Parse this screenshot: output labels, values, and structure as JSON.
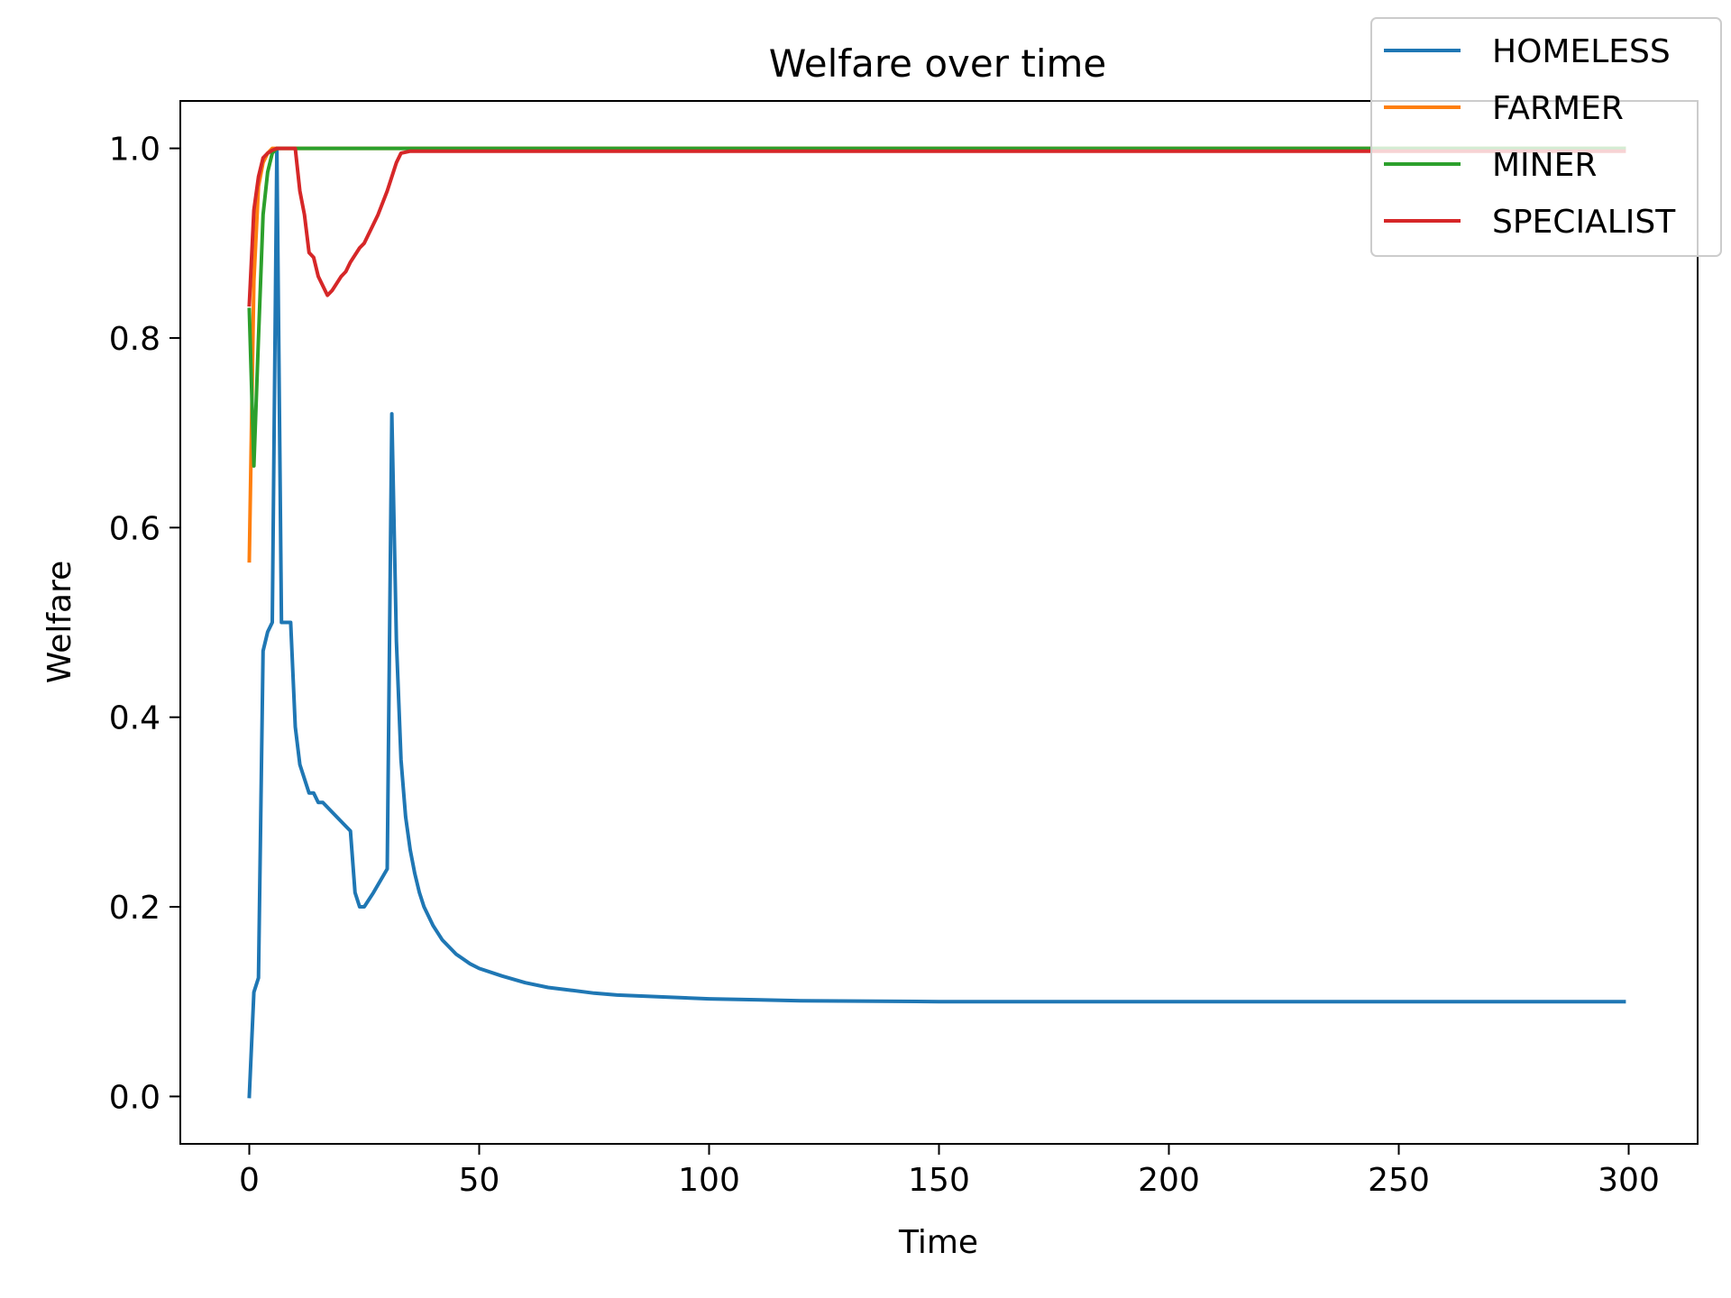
{
  "chart_data": {
    "type": "line",
    "title": "Welfare over time",
    "xlabel": "Time",
    "ylabel": "Welfare",
    "xlim": [
      -15,
      315
    ],
    "ylim": [
      -0.05,
      1.05
    ],
    "xticks": [
      0,
      50,
      100,
      150,
      200,
      250,
      300
    ],
    "yticks": [
      0.0,
      0.2,
      0.4,
      0.6,
      0.8,
      1.0
    ],
    "xtick_labels": [
      "0",
      "50",
      "100",
      "150",
      "200",
      "250",
      "300"
    ],
    "ytick_labels": [
      "0.0",
      "0.2",
      "0.4",
      "0.6",
      "0.8",
      "1.0"
    ],
    "grid": false,
    "legend_position": "top-right",
    "series": [
      {
        "name": "HOMELESS",
        "color": "#1f77b4",
        "points": [
          [
            0,
            0.0
          ],
          [
            1,
            0.11
          ],
          [
            2,
            0.125
          ],
          [
            3,
            0.47
          ],
          [
            4,
            0.49
          ],
          [
            5,
            0.5
          ],
          [
            6,
            1.0
          ],
          [
            7,
            0.5
          ],
          [
            9,
            0.5
          ],
          [
            10,
            0.39
          ],
          [
            11,
            0.35
          ],
          [
            13,
            0.32
          ],
          [
            14,
            0.32
          ],
          [
            15,
            0.31
          ],
          [
            16,
            0.31
          ],
          [
            18,
            0.3
          ],
          [
            20,
            0.29
          ],
          [
            22,
            0.28
          ],
          [
            23,
            0.215
          ],
          [
            24,
            0.2
          ],
          [
            25,
            0.2
          ],
          [
            27,
            0.215
          ],
          [
            30,
            0.24
          ],
          [
            31,
            0.72
          ],
          [
            32,
            0.48
          ],
          [
            33,
            0.355
          ],
          [
            34,
            0.295
          ],
          [
            35,
            0.26
          ],
          [
            36,
            0.235
          ],
          [
            37,
            0.215
          ],
          [
            38,
            0.2
          ],
          [
            40,
            0.18
          ],
          [
            42,
            0.165
          ],
          [
            45,
            0.15
          ],
          [
            48,
            0.14
          ],
          [
            50,
            0.135
          ],
          [
            55,
            0.127
          ],
          [
            60,
            0.12
          ],
          [
            65,
            0.115
          ],
          [
            70,
            0.112
          ],
          [
            75,
            0.109
          ],
          [
            80,
            0.107
          ],
          [
            90,
            0.105
          ],
          [
            100,
            0.103
          ],
          [
            110,
            0.102
          ],
          [
            120,
            0.101
          ],
          [
            150,
            0.1
          ],
          [
            200,
            0.1
          ],
          [
            250,
            0.1
          ],
          [
            299,
            0.1
          ]
        ]
      },
      {
        "name": "FARMER",
        "color": "#ff7f0e",
        "points": [
          [
            0,
            0.565
          ],
          [
            1,
            0.86
          ],
          [
            2,
            0.96
          ],
          [
            3,
            0.985
          ],
          [
            4,
            0.995
          ],
          [
            5,
            1.0
          ],
          [
            10,
            1.0
          ],
          [
            50,
            1.0
          ],
          [
            100,
            1.0
          ],
          [
            150,
            1.0
          ],
          [
            200,
            1.0
          ],
          [
            250,
            1.0
          ],
          [
            299,
            1.0
          ]
        ]
      },
      {
        "name": "MINER",
        "color": "#2ca02c",
        "points": [
          [
            0,
            0.83
          ],
          [
            1,
            0.665
          ],
          [
            2,
            0.8
          ],
          [
            3,
            0.93
          ],
          [
            4,
            0.975
          ],
          [
            5,
            0.995
          ],
          [
            6,
            1.0
          ],
          [
            10,
            1.0
          ],
          [
            50,
            1.0
          ],
          [
            100,
            1.0
          ],
          [
            150,
            1.0
          ],
          [
            200,
            1.0
          ],
          [
            250,
            1.0
          ],
          [
            299,
            1.0
          ]
        ]
      },
      {
        "name": "SPECIALIST",
        "color": "#d62728",
        "points": [
          [
            0,
            0.835
          ],
          [
            1,
            0.935
          ],
          [
            2,
            0.97
          ],
          [
            3,
            0.99
          ],
          [
            4,
            0.995
          ],
          [
            5,
            0.998
          ],
          [
            6,
            1.0
          ],
          [
            9,
            1.0
          ],
          [
            10,
            1.0
          ],
          [
            11,
            0.955
          ],
          [
            12,
            0.93
          ],
          [
            13,
            0.89
          ],
          [
            14,
            0.885
          ],
          [
            15,
            0.865
          ],
          [
            17,
            0.845
          ],
          [
            18,
            0.85
          ],
          [
            20,
            0.865
          ],
          [
            21,
            0.87
          ],
          [
            22,
            0.88
          ],
          [
            24,
            0.895
          ],
          [
            25,
            0.9
          ],
          [
            26,
            0.91
          ],
          [
            28,
            0.93
          ],
          [
            30,
            0.955
          ],
          [
            32,
            0.985
          ],
          [
            33,
            0.995
          ],
          [
            35,
            0.997
          ],
          [
            40,
            0.997
          ],
          [
            50,
            0.997
          ],
          [
            60,
            0.997
          ],
          [
            80,
            0.997
          ],
          [
            100,
            0.997
          ],
          [
            150,
            0.997
          ],
          [
            200,
            0.997
          ],
          [
            250,
            0.997
          ],
          [
            299,
            0.997
          ]
        ]
      }
    ]
  }
}
